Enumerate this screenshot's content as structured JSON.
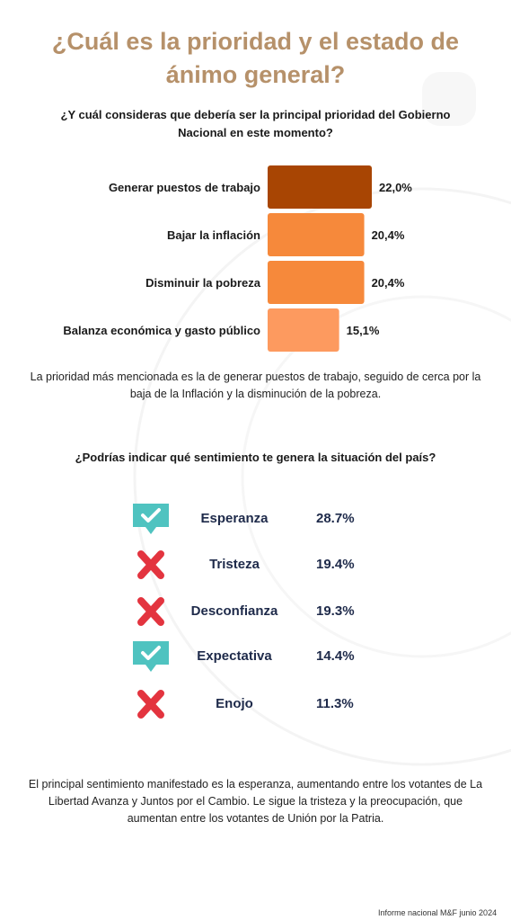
{
  "title": "¿Cuál es la prioridad y el estado de ánimo general?",
  "question1": "¿Y cuál consideras que debería ser la principal prioridad del Gobierno Nacional en este momento?",
  "chart_data": {
    "type": "bar",
    "orientation": "horizontal",
    "categories": [
      "Generar puestos de trabajo",
      "Bajar la inflación",
      "Disminuir la pobreza",
      "Balanza económica y gasto público"
    ],
    "values": [
      22.0,
      20.4,
      20.4,
      15.1
    ],
    "value_labels": [
      "22,0%",
      "20,4%",
      "20,4%",
      "15,1%"
    ],
    "colors": [
      "#a84503",
      "#f6893b",
      "#f6893b",
      "#fd9a5f"
    ],
    "title": "",
    "xlabel": "",
    "ylabel": "",
    "grid": false
  },
  "summary1": "La prioridad más mencionada es la de generar puestos de trabajo, seguido de cerca por la baja de la Inflación y la disminución de la pobreza.",
  "question2": "¿Podrías indicar qué sentimiento te genera la situación del país?",
  "sentiments": [
    {
      "label": "Esperanza",
      "value": "28.7%",
      "icon": "check-bubble-icon"
    },
    {
      "label": "Tristeza",
      "value": "19.4%",
      "icon": "cross-icon"
    },
    {
      "label": "Desconfianza",
      "value": "19.3%",
      "icon": "cross-icon"
    },
    {
      "label": "Expectativa",
      "value": "14.4%",
      "icon": "check-bubble-icon"
    },
    {
      "label": "Enojo",
      "value": "11.3%",
      "icon": "cross-icon"
    }
  ],
  "summary2": "El principal sentimiento manifestado es la esperanza, aumentando entre los votantes de La Libertad Avanza y Juntos por el Cambio. Le sigue la tristeza y la preocupación, que aumentan entre los votantes de Unión por la Patria.",
  "footer": "Informe nacional M&F junio 2024",
  "colors": {
    "title": "#b6916a",
    "check_icon": "#4fc3c0",
    "cross_icon": "#e3343f",
    "sentiment_text": "#1e2a4a"
  }
}
